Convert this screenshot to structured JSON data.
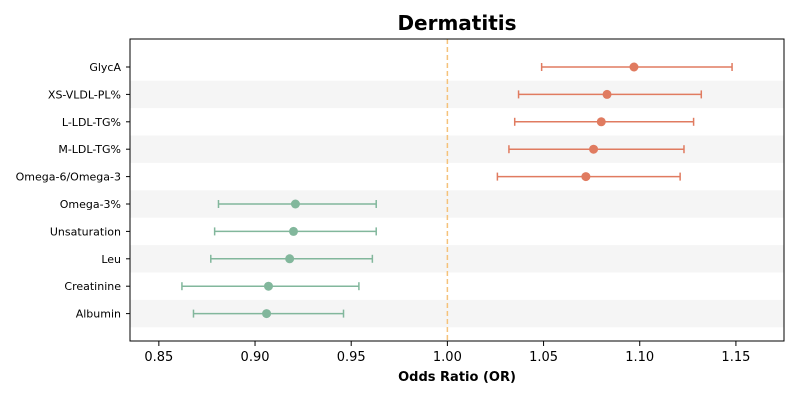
{
  "chart_data": {
    "type": "scatter",
    "subtype": "forest-plot",
    "title": "Dermatitis",
    "xlabel": "Odds Ratio (OR)",
    "ylabel": "",
    "xlim": [
      0.835,
      1.175
    ],
    "xticks": [
      0.85,
      0.9,
      0.95,
      1.0,
      1.05,
      1.1,
      1.15
    ],
    "xtick_labels": [
      "0.85",
      "0.90",
      "0.95",
      "1.00",
      "1.05",
      "1.10",
      "1.15"
    ],
    "reference_line": 1.0,
    "grid": false,
    "row_banding": true,
    "colors": {
      "positive": "#e07b60",
      "negative": "#82b79c",
      "reference": "#f5c27a",
      "band": "#f5f5f5"
    },
    "categories": [
      "GlycA",
      "XS-VLDL-PL%",
      "L-LDL-TG%",
      "M-LDL-TG%",
      "Omega-6/Omega-3",
      "Omega-3%",
      "Unsaturation",
      "Leu",
      "Creatinine",
      "Albumin"
    ],
    "or": [
      1.097,
      1.083,
      1.08,
      1.076,
      1.072,
      0.921,
      0.92,
      0.918,
      0.907,
      0.906
    ],
    "ci_low": [
      1.049,
      1.037,
      1.035,
      1.032,
      1.026,
      0.881,
      0.879,
      0.877,
      0.862,
      0.868
    ],
    "ci_high": [
      1.148,
      1.132,
      1.128,
      1.123,
      1.121,
      0.963,
      0.963,
      0.961,
      0.954,
      0.946
    ]
  }
}
